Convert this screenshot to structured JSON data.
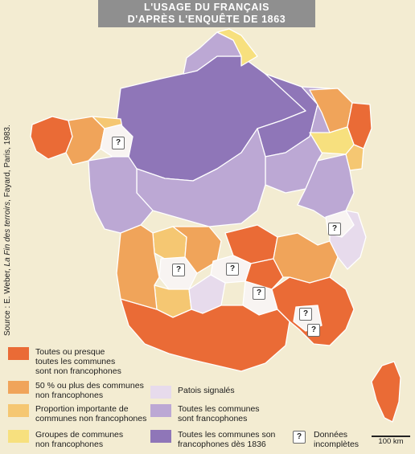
{
  "title": {
    "line1": "L'USAGE DU FRANÇAIS",
    "line2": "D'APRÈS L'ENQUÊTE DE 1863"
  },
  "source": {
    "prefix": "Source : E. Weber, ",
    "italic": "La Fin des terroirs",
    "suffix": ", Fayard, Paris, 1983."
  },
  "colors": {
    "dark_orange": "#ea6b36",
    "mid_orange": "#f0a45a",
    "light_orange": "#f5c772",
    "yellow": "#f7e07e",
    "lilac_pale": "#e7dbec",
    "lilac": "#bca8d4",
    "purple": "#8f76b8",
    "sea": "#f3ecd2"
  },
  "legend": [
    {
      "label": "Toutes ou presque toutes les communes sont non francophones",
      "lines": [
        "Toutes ou presque",
        "toutes les communes",
        "sont non francophones"
      ],
      "color": "#ea6b36"
    },
    {
      "label": "50 % ou plus des communes non francophones",
      "lines": [
        "50 % ou plus des communes",
        "non francophones"
      ],
      "color": "#f0a45a"
    },
    {
      "label": "Proportion importante de communes non francophones",
      "lines": [
        "Proportion importante de",
        "communes non francophones"
      ],
      "color": "#f5c772"
    },
    {
      "label": "Groupes de communes non francophones",
      "lines": [
        "Groupes de communes",
        "non francophones"
      ],
      "color": "#f7e07e"
    },
    {
      "label": "Patois signalés",
      "lines": [
        "Patois signalés"
      ],
      "color": "#e7dbec"
    },
    {
      "label": "Toutes les communes sont francophones",
      "lines": [
        "Toutes les communes",
        "sont francophones"
      ],
      "color": "#bca8d4"
    },
    {
      "label": "Toutes les communes son francophones dès 1836",
      "lines": [
        "Toutes les communes son",
        "francophones dès 1836"
      ],
      "color": "#8f76b8"
    },
    {
      "label": "Données incomplètes",
      "lines": [
        "Données",
        "incomplètes"
      ],
      "symbol": "?"
    }
  ],
  "question_mark": "?",
  "scale": {
    "label": "100 km"
  }
}
